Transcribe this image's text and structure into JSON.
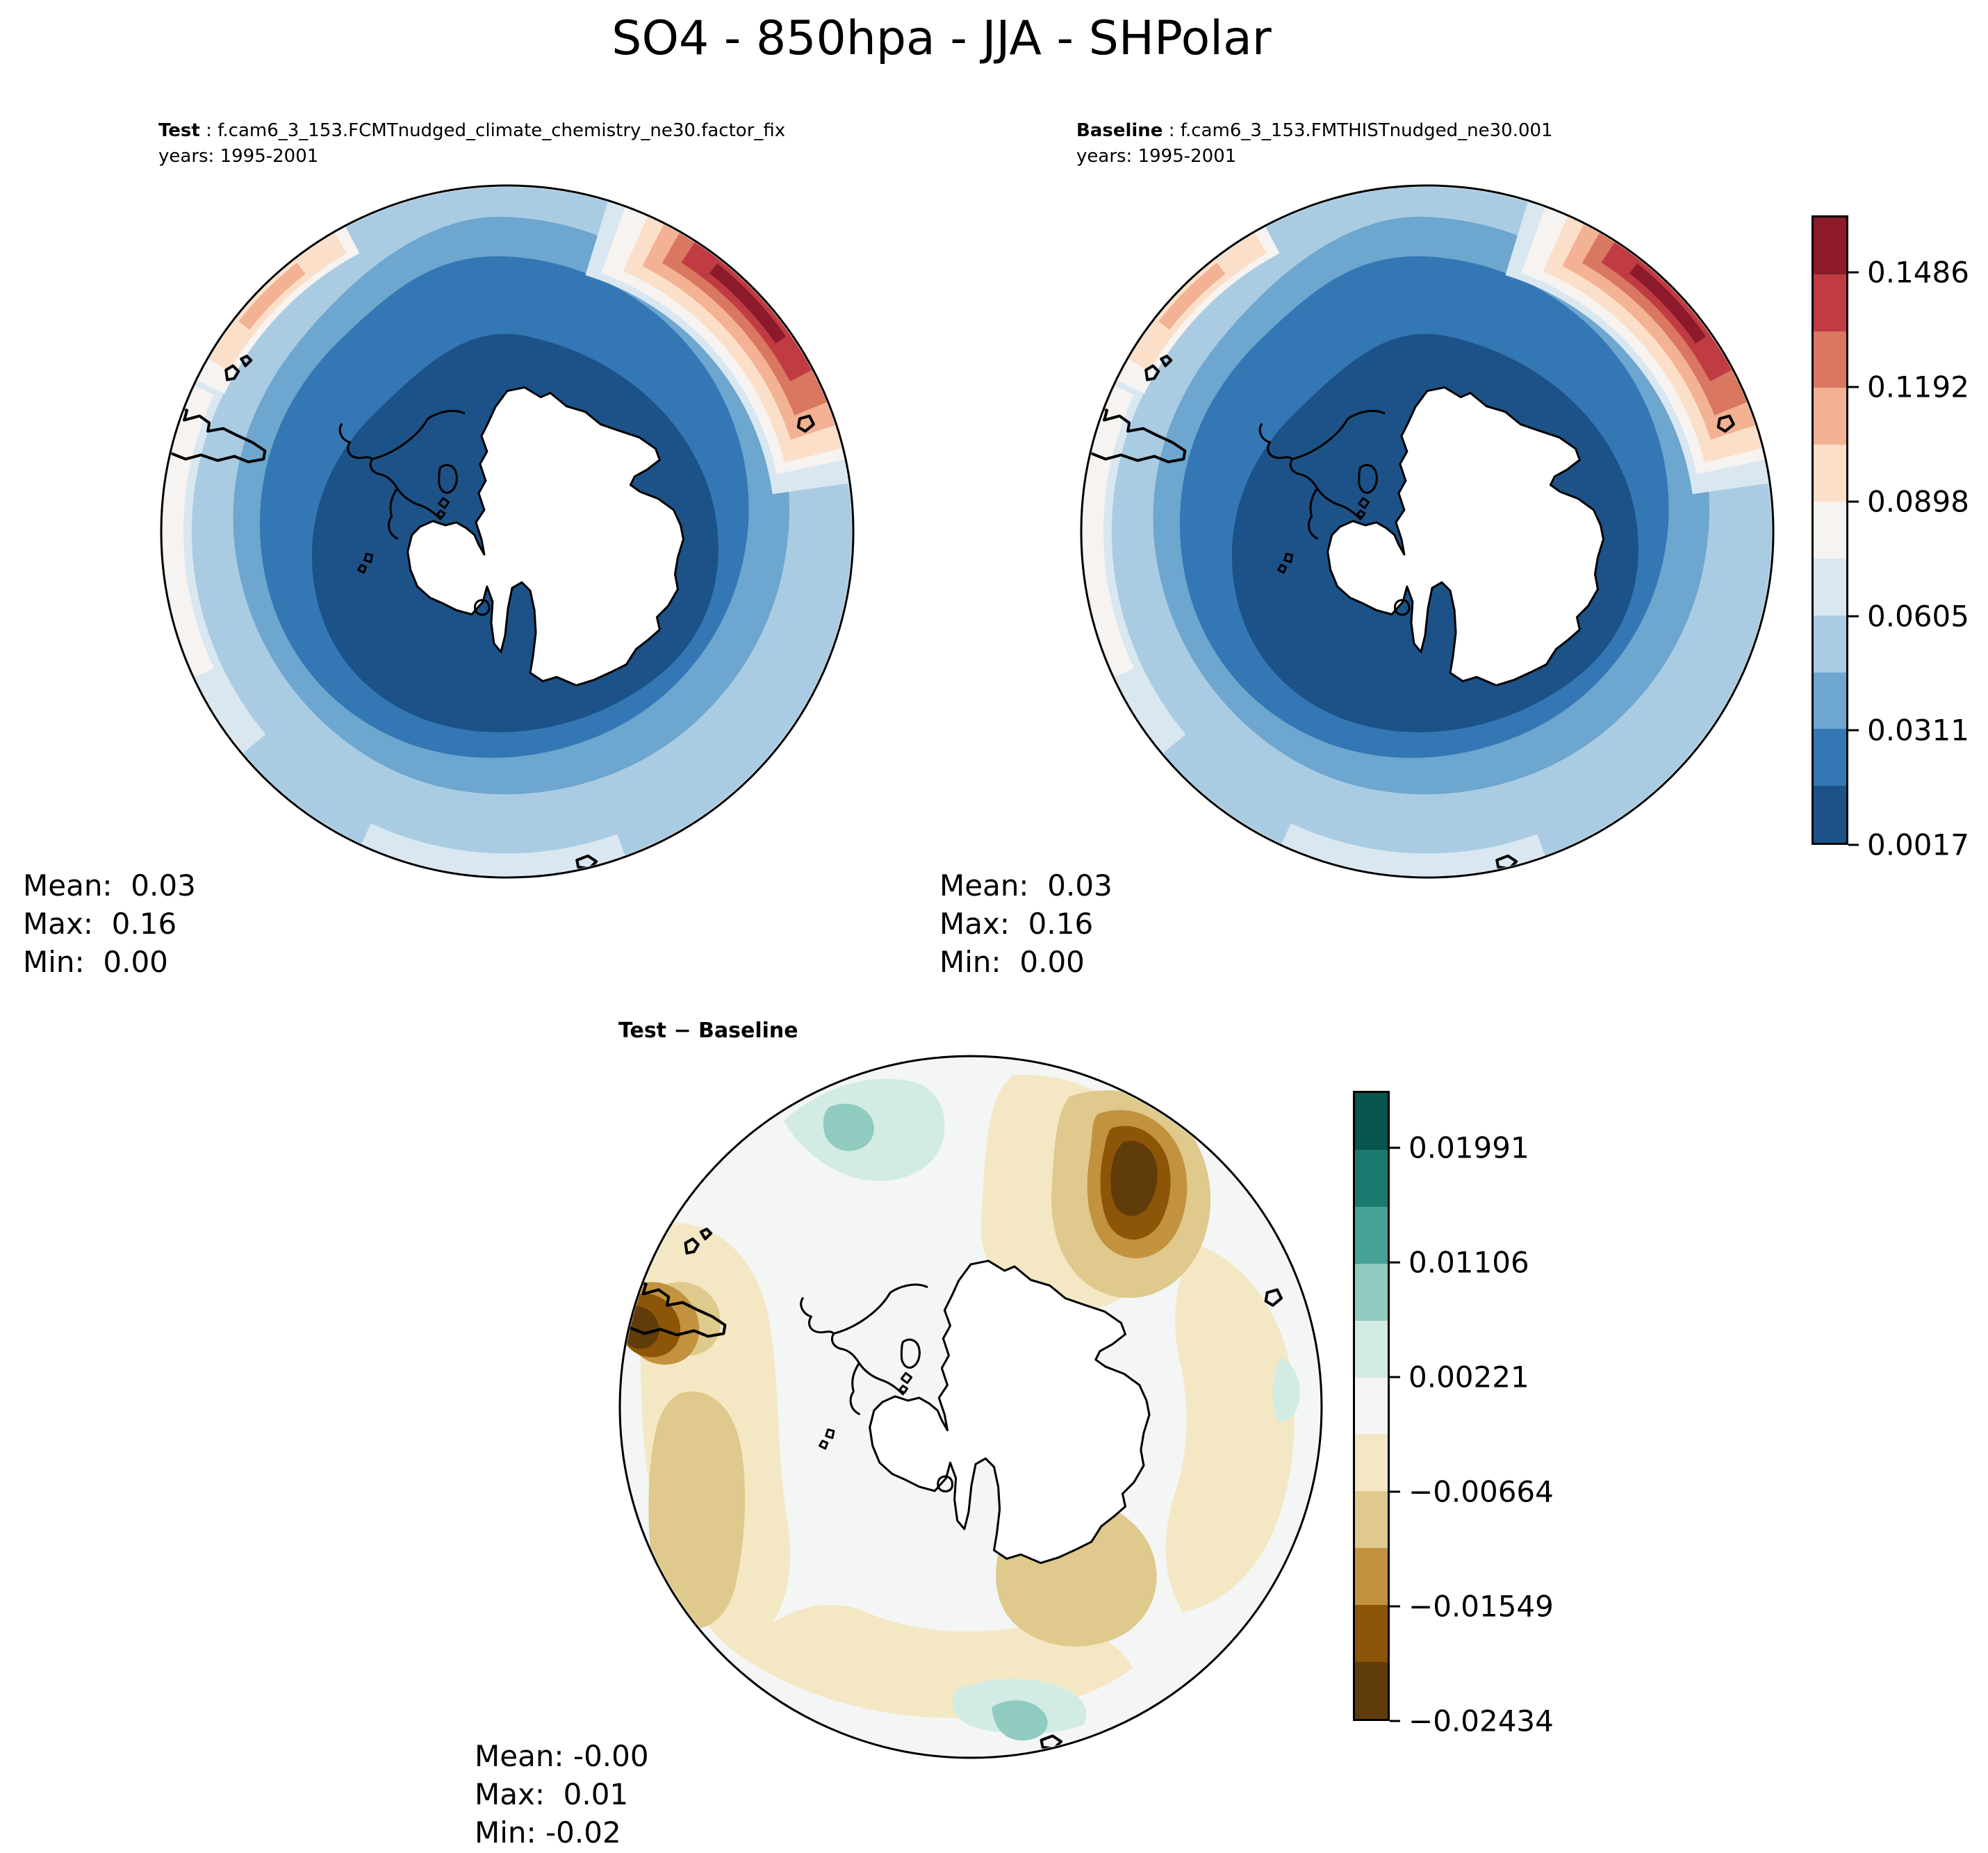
{
  "title": "SO4 - 850hpa - JJA - SHPolar",
  "panels": {
    "test": {
      "name": "Test",
      "dataset": " : f.cam6_3_153.FCMTnudged_climate_chemistry_ne30.factor_fix",
      "years": "years: 1995-2001",
      "stats": [
        "Mean:  0.03",
        "Max:  0.16",
        "Min:  0.00"
      ]
    },
    "baseline": {
      "name": "Baseline",
      "dataset": " : f.cam6_3_153.FMTHISTnudged_ne30.001",
      "years": "years: 1995-2001",
      "stats": [
        "Mean:  0.03",
        "Max:  0.16",
        "Min:  0.00"
      ]
    },
    "diff": {
      "name": "Test − Baseline",
      "stats": [
        "Mean: -0.00",
        "Max:  0.01",
        "Min: -0.02"
      ]
    }
  },
  "colorbars": {
    "so4": {
      "bands": [
        "#8c1a2b",
        "#c03c42",
        "#d97760",
        "#f2b293",
        "#fbdfc9",
        "#f6f3f0",
        "#d9e7f1",
        "#a9cce3",
        "#6da6cf",
        "#3377b5",
        "#1c5287"
      ],
      "ticks": [
        {
          "label": "0.1486",
          "pos": 0.0909
        },
        {
          "label": "0.1192",
          "pos": 0.2727
        },
        {
          "label": "0.0898",
          "pos": 0.4545
        },
        {
          "label": "0.0605",
          "pos": 0.6364
        },
        {
          "label": "0.0311",
          "pos": 0.8182
        },
        {
          "label": "0.0017",
          "pos": 1.0
        }
      ]
    },
    "diff": {
      "bands": [
        "#07554d",
        "#1b7a6f",
        "#47a195",
        "#8fcbbe",
        "#d2ebe4",
        "#f3f6f4",
        "#f4e7c4",
        "#dfc98c",
        "#c2923f",
        "#8d5507",
        "#603c0b"
      ],
      "ticks": [
        {
          "label": "0.01991",
          "pos": 0.0909
        },
        {
          "label": "0.01106",
          "pos": 0.2727
        },
        {
          "label": "0.00221",
          "pos": 0.4545
        },
        {
          "label": "−0.00664",
          "pos": 0.6364
        },
        {
          "label": "−0.01549",
          "pos": 0.8182
        },
        {
          "label": "−0.02434",
          "pos": 1.0
        }
      ]
    }
  },
  "chart_data": [
    {
      "type": "heatmap",
      "panel": "Test",
      "dataset": "f.cam6_3_153.FCMTnudged_climate_chemistry_ne30.factor_fix",
      "years": "1995-2001",
      "variable": "SO4",
      "level": "850hpa",
      "season": "JJA",
      "region": "SHPolar",
      "projection": "south-polar-stereographic",
      "stats": {
        "mean": 0.03,
        "max": 0.16,
        "min": 0.0
      },
      "colorbar_ticks": [
        0.1486,
        0.1192,
        0.0898,
        0.0605,
        0.0311,
        0.0017
      ],
      "colorbar_style": "blue-to-red discrete, 11 bands, low values dark blue around Antarctica, red maximum hotspot near 45° top-right rim"
    },
    {
      "type": "heatmap",
      "panel": "Baseline",
      "dataset": "f.cam6_3_153.FMTHISTnudged_ne30.001",
      "years": "1995-2001",
      "variable": "SO4",
      "level": "850hpa",
      "season": "JJA",
      "region": "SHPolar",
      "projection": "south-polar-stereographic",
      "stats": {
        "mean": 0.03,
        "max": 0.16,
        "min": 0.0
      },
      "colorbar_ticks": [
        0.1486,
        0.1192,
        0.0898,
        0.0605,
        0.0311,
        0.0017
      ],
      "colorbar_style": "same scale as Test panel; field visually nearly identical to Test"
    },
    {
      "type": "heatmap",
      "panel": "Test − Baseline",
      "variable": "SO4 difference",
      "level": "850hpa",
      "season": "JJA",
      "region": "SHPolar",
      "projection": "south-polar-stereographic",
      "stats": {
        "mean": -0.0,
        "max": 0.01,
        "min": -0.02
      },
      "colorbar_ticks": [
        0.01991,
        0.01106,
        0.00221,
        -0.00664,
        -0.01549,
        -0.02434
      ],
      "colorbar_style": "brown-to-teal discrete, 11 bands; mostly near-zero off-white/tan, dark-brown negative hotspots top-right and west rim, small teal positives top-left and bottom"
    }
  ]
}
